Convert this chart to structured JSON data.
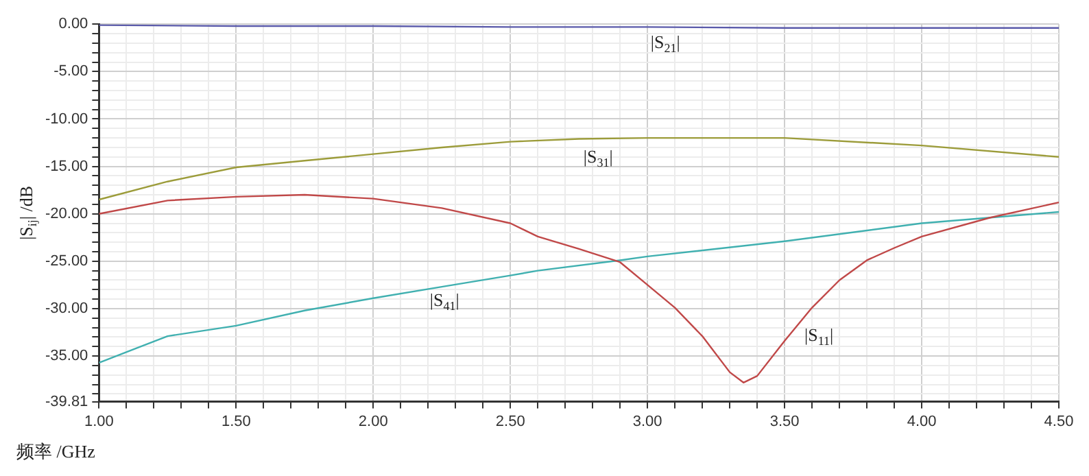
{
  "chart_data": {
    "type": "line",
    "xlabel": "频率 /GHz",
    "ylabel": "|S$_{ij}$| /dB",
    "grid": true,
    "marker": "none",
    "line_style": "solid",
    "xlim": [
      1,
      4.5
    ],
    "ylim": [
      -39.81,
      0
    ],
    "xticks": [
      {
        "value": 1,
        "label": "1.00"
      },
      {
        "value": 1.1,
        "label": null
      },
      {
        "value": 1.2,
        "label": null
      },
      {
        "value": 1.3,
        "label": null
      },
      {
        "value": 1.4,
        "label": null
      },
      {
        "value": 1.5,
        "label": "1.50"
      },
      {
        "value": 1.6,
        "label": null
      },
      {
        "value": 1.7,
        "label": null
      },
      {
        "value": 1.8,
        "label": null
      },
      {
        "value": 1.9,
        "label": null
      },
      {
        "value": 2,
        "label": "2.00"
      },
      {
        "value": 2.1,
        "label": null
      },
      {
        "value": 2.2,
        "label": null
      },
      {
        "value": 2.3,
        "label": null
      },
      {
        "value": 2.4,
        "label": null
      },
      {
        "value": 2.5,
        "label": "2.50"
      },
      {
        "value": 2.6,
        "label": null
      },
      {
        "value": 2.7,
        "label": null
      },
      {
        "value": 2.8,
        "label": null
      },
      {
        "value": 2.9,
        "label": null
      },
      {
        "value": 3,
        "label": "3.00"
      },
      {
        "value": 3.1,
        "label": null
      },
      {
        "value": 3.2,
        "label": null
      },
      {
        "value": 3.3,
        "label": null
      },
      {
        "value": 3.4,
        "label": null
      },
      {
        "value": 3.5,
        "label": "3.50"
      },
      {
        "value": 3.6,
        "label": null
      },
      {
        "value": 3.7,
        "label": null
      },
      {
        "value": 3.8,
        "label": null
      },
      {
        "value": 3.9,
        "label": null
      },
      {
        "value": 4,
        "label": "4.00"
      },
      {
        "value": 4.1,
        "label": null
      },
      {
        "value": 4.2,
        "label": null
      },
      {
        "value": 4.3,
        "label": null
      },
      {
        "value": 4.4,
        "label": null
      },
      {
        "value": 4.5,
        "label": "4.50"
      }
    ],
    "yticks": [
      {
        "value": -39.81,
        "label": "-39.81"
      },
      {
        "value": -39,
        "label": null
      },
      {
        "value": -38,
        "label": null
      },
      {
        "value": -37,
        "label": null
      },
      {
        "value": -36,
        "label": null
      },
      {
        "value": -35,
        "label": "-35.00"
      },
      {
        "value": -34,
        "label": null
      },
      {
        "value": -33,
        "label": null
      },
      {
        "value": -32,
        "label": null
      },
      {
        "value": -31,
        "label": null
      },
      {
        "value": -30,
        "label": "-30.00"
      },
      {
        "value": -29,
        "label": null
      },
      {
        "value": -28,
        "label": null
      },
      {
        "value": -27,
        "label": null
      },
      {
        "value": -26,
        "label": null
      },
      {
        "value": -25,
        "label": "-25.00"
      },
      {
        "value": -24,
        "label": null
      },
      {
        "value": -23,
        "label": null
      },
      {
        "value": -22,
        "label": null
      },
      {
        "value": -21,
        "label": null
      },
      {
        "value": -20,
        "label": "-20.00"
      },
      {
        "value": -19,
        "label": null
      },
      {
        "value": -18,
        "label": null
      },
      {
        "value": -17,
        "label": null
      },
      {
        "value": -16,
        "label": null
      },
      {
        "value": -15,
        "label": "-15.00"
      },
      {
        "value": -14,
        "label": null
      },
      {
        "value": -13,
        "label": null
      },
      {
        "value": -12,
        "label": null
      },
      {
        "value": -11,
        "label": null
      },
      {
        "value": -10,
        "label": "-10.00"
      },
      {
        "value": -9,
        "label": null
      },
      {
        "value": -8,
        "label": null
      },
      {
        "value": -7,
        "label": null
      },
      {
        "value": -6,
        "label": null
      },
      {
        "value": -5,
        "label": "-5.00"
      },
      {
        "value": -4,
        "label": null
      },
      {
        "value": -3,
        "label": null
      },
      {
        "value": -2,
        "label": null
      },
      {
        "value": -1,
        "label": null
      },
      {
        "value": 0,
        "label": "0.00"
      }
    ],
    "series": [
      {
        "name": "|S$_{21}$|",
        "color": "#5a5aaa",
        "x": [
          1,
          1.5,
          2,
          2.5,
          3,
          3.5,
          4,
          4.5
        ],
        "values": [
          -0.1,
          -0.2,
          -0.2,
          -0.3,
          -0.3,
          -0.4,
          -0.4,
          -0.4
        ]
      },
      {
        "name": "|S$_{31}$|",
        "color": "#9c9c3a",
        "x": [
          1,
          1.25,
          1.5,
          1.75,
          2,
          2.25,
          2.5,
          2.75,
          3,
          3.5,
          4,
          4.5
        ],
        "values": [
          -18.5,
          -16.6,
          -15.1,
          -14.4,
          -13.7,
          -13,
          -12.4,
          -12.1,
          -12,
          -12,
          -12.8,
          -14
        ]
      },
      {
        "name": "|S$_{11}$|",
        "color": "#c04848",
        "x": [
          1,
          1.25,
          1.5,
          1.75,
          2,
          2.25,
          2.5,
          2.6,
          2.75,
          2.9,
          3,
          3.1,
          3.2,
          3.3,
          3.35,
          3.4,
          3.5,
          3.6,
          3.7,
          3.8,
          3.9,
          4,
          4.25,
          4.5
        ],
        "values": [
          -20,
          -18.6,
          -18.2,
          -18,
          -18.4,
          -19.4,
          -21,
          -22.4,
          -23.7,
          -25.1,
          -27.5,
          -29.9,
          -32.9,
          -36.7,
          -37.8,
          -37.1,
          -33.4,
          -29.9,
          -27,
          -24.9,
          -23.6,
          -22.4,
          -20.4,
          -18.8
        ]
      },
      {
        "name": "|S$_{41}$|",
        "color": "#40b0b0",
        "x": [
          1,
          1.25,
          1.5,
          1.75,
          2,
          2.25,
          2.5,
          2.6,
          2.9,
          3,
          3.5,
          4,
          4.5
        ],
        "values": [
          -35.7,
          -32.9,
          -31.8,
          -30.2,
          -28.9,
          -27.7,
          -26.5,
          -26,
          -24.9,
          -24.5,
          -22.9,
          -21,
          -19.8
        ]
      }
    ]
  }
}
